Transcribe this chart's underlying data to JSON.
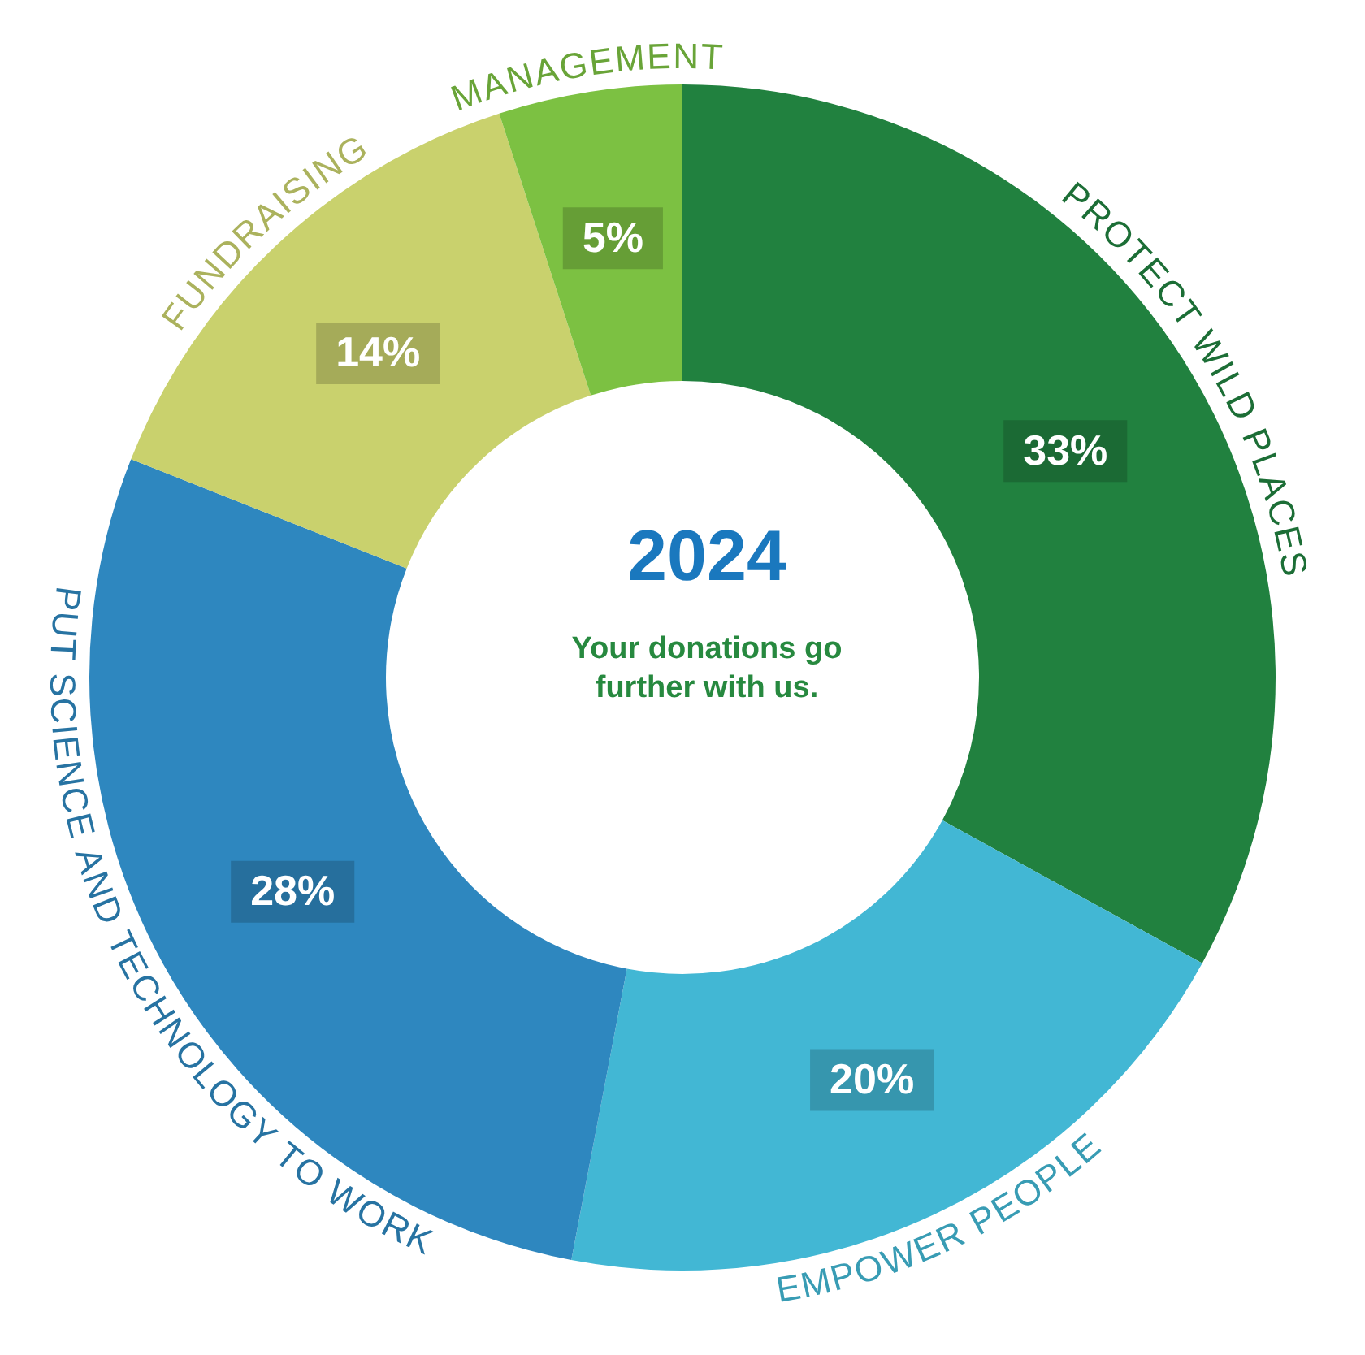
{
  "chart_data": {
    "type": "donut",
    "title": "2024",
    "subtitle": "Your donations go further with us.",
    "categories": [
      "PROTECT WILD PLACES",
      "EMPOWER PEOPLE",
      "PUT SCIENCE AND TECHNOLOGY TO WORK",
      "FUNDRAISING",
      "MANAGEMENT"
    ],
    "values": [
      33,
      20,
      28,
      14,
      5
    ],
    "colors": [
      "#21813f",
      "#42b7d4",
      "#2e87bf",
      "#c9d16d",
      "#7cc142"
    ],
    "value_labels": [
      "33%",
      "20%",
      "28%",
      "14%",
      "5%"
    ],
    "legend": false
  }
}
